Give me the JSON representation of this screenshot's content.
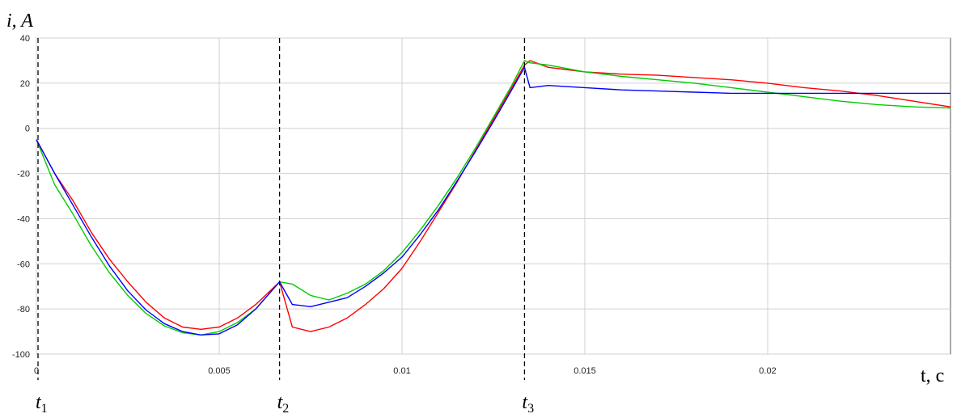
{
  "chart_data": {
    "type": "line",
    "ylabel": "i, A",
    "xlabel": "t, c",
    "xlim": [
      0,
      0.025
    ],
    "ylim": [
      -100,
      40
    ],
    "grid": true,
    "legend": "none",
    "x_ticks": [
      0,
      0.005,
      0.01,
      0.015,
      0.02
    ],
    "x_tick_labels": [
      "0",
      "0.005",
      "0.01",
      "0.015",
      "0.02"
    ],
    "y_ticks": [
      40,
      20,
      0,
      -20,
      -40,
      -60,
      -80,
      -100
    ],
    "y_tick_labels": [
      "40",
      "20",
      "0",
      "-20",
      "-40",
      "-60",
      "-80",
      "-100"
    ],
    "markers": [
      {
        "base": "t",
        "sub": "1",
        "x": 0
      },
      {
        "base": "t",
        "sub": "2",
        "x": 0.00665
      },
      {
        "base": "t",
        "sub": "3",
        "x": 0.01335
      }
    ],
    "series": [
      {
        "color": "#ff0000",
        "points": [
          [
            0,
            -5
          ],
          [
            0.0005,
            -20
          ],
          [
            0.001,
            -32
          ],
          [
            0.0015,
            -46
          ],
          [
            0.002,
            -58
          ],
          [
            0.0025,
            -68
          ],
          [
            0.003,
            -77
          ],
          [
            0.0035,
            -84
          ],
          [
            0.004,
            -88
          ],
          [
            0.0045,
            -89
          ],
          [
            0.005,
            -88
          ],
          [
            0.0055,
            -84
          ],
          [
            0.006,
            -78
          ],
          [
            0.00665,
            -68
          ],
          [
            0.007,
            -88
          ],
          [
            0.0075,
            -90
          ],
          [
            0.008,
            -88
          ],
          [
            0.0085,
            -84
          ],
          [
            0.009,
            -78
          ],
          [
            0.0095,
            -71
          ],
          [
            0.01,
            -62
          ],
          [
            0.0105,
            -50
          ],
          [
            0.011,
            -37
          ],
          [
            0.0115,
            -24
          ],
          [
            0.012,
            -10
          ],
          [
            0.0125,
            4
          ],
          [
            0.013,
            18
          ],
          [
            0.01335,
            28
          ],
          [
            0.0135,
            30
          ],
          [
            0.014,
            27
          ],
          [
            0.015,
            25
          ],
          [
            0.016,
            24
          ],
          [
            0.017,
            23.5
          ],
          [
            0.018,
            22.5
          ],
          [
            0.019,
            21.5
          ],
          [
            0.02,
            20
          ],
          [
            0.021,
            18
          ],
          [
            0.022,
            16.5
          ],
          [
            0.023,
            14.5
          ],
          [
            0.024,
            12
          ],
          [
            0.025,
            9.5
          ]
        ]
      },
      {
        "color": "#00cc00",
        "points": [
          [
            0,
            -5
          ],
          [
            0.0005,
            -25
          ],
          [
            0.001,
            -38
          ],
          [
            0.0015,
            -52
          ],
          [
            0.002,
            -64
          ],
          [
            0.0025,
            -74
          ],
          [
            0.003,
            -82
          ],
          [
            0.0035,
            -87.5
          ],
          [
            0.004,
            -90.5
          ],
          [
            0.0045,
            -91.5
          ],
          [
            0.005,
            -90
          ],
          [
            0.0055,
            -86
          ],
          [
            0.006,
            -80
          ],
          [
            0.00665,
            -68
          ],
          [
            0.007,
            -69
          ],
          [
            0.0075,
            -74
          ],
          [
            0.008,
            -76
          ],
          [
            0.0085,
            -73
          ],
          [
            0.009,
            -69
          ],
          [
            0.0095,
            -63
          ],
          [
            0.01,
            -55
          ],
          [
            0.0105,
            -45
          ],
          [
            0.011,
            -34
          ],
          [
            0.0115,
            -22
          ],
          [
            0.012,
            -9
          ],
          [
            0.0125,
            5
          ],
          [
            0.013,
            19
          ],
          [
            0.01335,
            30
          ],
          [
            0.0135,
            29
          ],
          [
            0.014,
            28
          ],
          [
            0.015,
            25
          ],
          [
            0.016,
            23
          ],
          [
            0.017,
            21.5
          ],
          [
            0.018,
            20
          ],
          [
            0.019,
            18
          ],
          [
            0.02,
            16
          ],
          [
            0.021,
            14
          ],
          [
            0.022,
            12
          ],
          [
            0.023,
            10.5
          ],
          [
            0.024,
            9.5
          ],
          [
            0.025,
            9
          ]
        ]
      },
      {
        "color": "#0000ff",
        "points": [
          [
            0,
            -5
          ],
          [
            0.0005,
            -20
          ],
          [
            0.001,
            -34
          ],
          [
            0.0015,
            -48
          ],
          [
            0.002,
            -61
          ],
          [
            0.0025,
            -72
          ],
          [
            0.003,
            -80.5
          ],
          [
            0.0035,
            -86.5
          ],
          [
            0.004,
            -90
          ],
          [
            0.0045,
            -91.5
          ],
          [
            0.005,
            -91
          ],
          [
            0.0055,
            -87
          ],
          [
            0.006,
            -80
          ],
          [
            0.00665,
            -68
          ],
          [
            0.007,
            -78
          ],
          [
            0.0075,
            -79
          ],
          [
            0.008,
            -77
          ],
          [
            0.0085,
            -75
          ],
          [
            0.009,
            -70
          ],
          [
            0.0095,
            -64
          ],
          [
            0.01,
            -57
          ],
          [
            0.0105,
            -47
          ],
          [
            0.011,
            -36
          ],
          [
            0.0115,
            -23.5
          ],
          [
            0.012,
            -10.5
          ],
          [
            0.0125,
            3
          ],
          [
            0.013,
            17
          ],
          [
            0.01335,
            27
          ],
          [
            0.0135,
            18
          ],
          [
            0.014,
            19
          ],
          [
            0.015,
            18
          ],
          [
            0.016,
            17
          ],
          [
            0.017,
            16.5
          ],
          [
            0.018,
            16
          ],
          [
            0.019,
            15.5
          ],
          [
            0.02,
            15.5
          ],
          [
            0.021,
            15.5
          ],
          [
            0.022,
            15.5
          ],
          [
            0.023,
            15.5
          ],
          [
            0.024,
            15.5
          ],
          [
            0.025,
            15.5
          ]
        ]
      }
    ]
  }
}
